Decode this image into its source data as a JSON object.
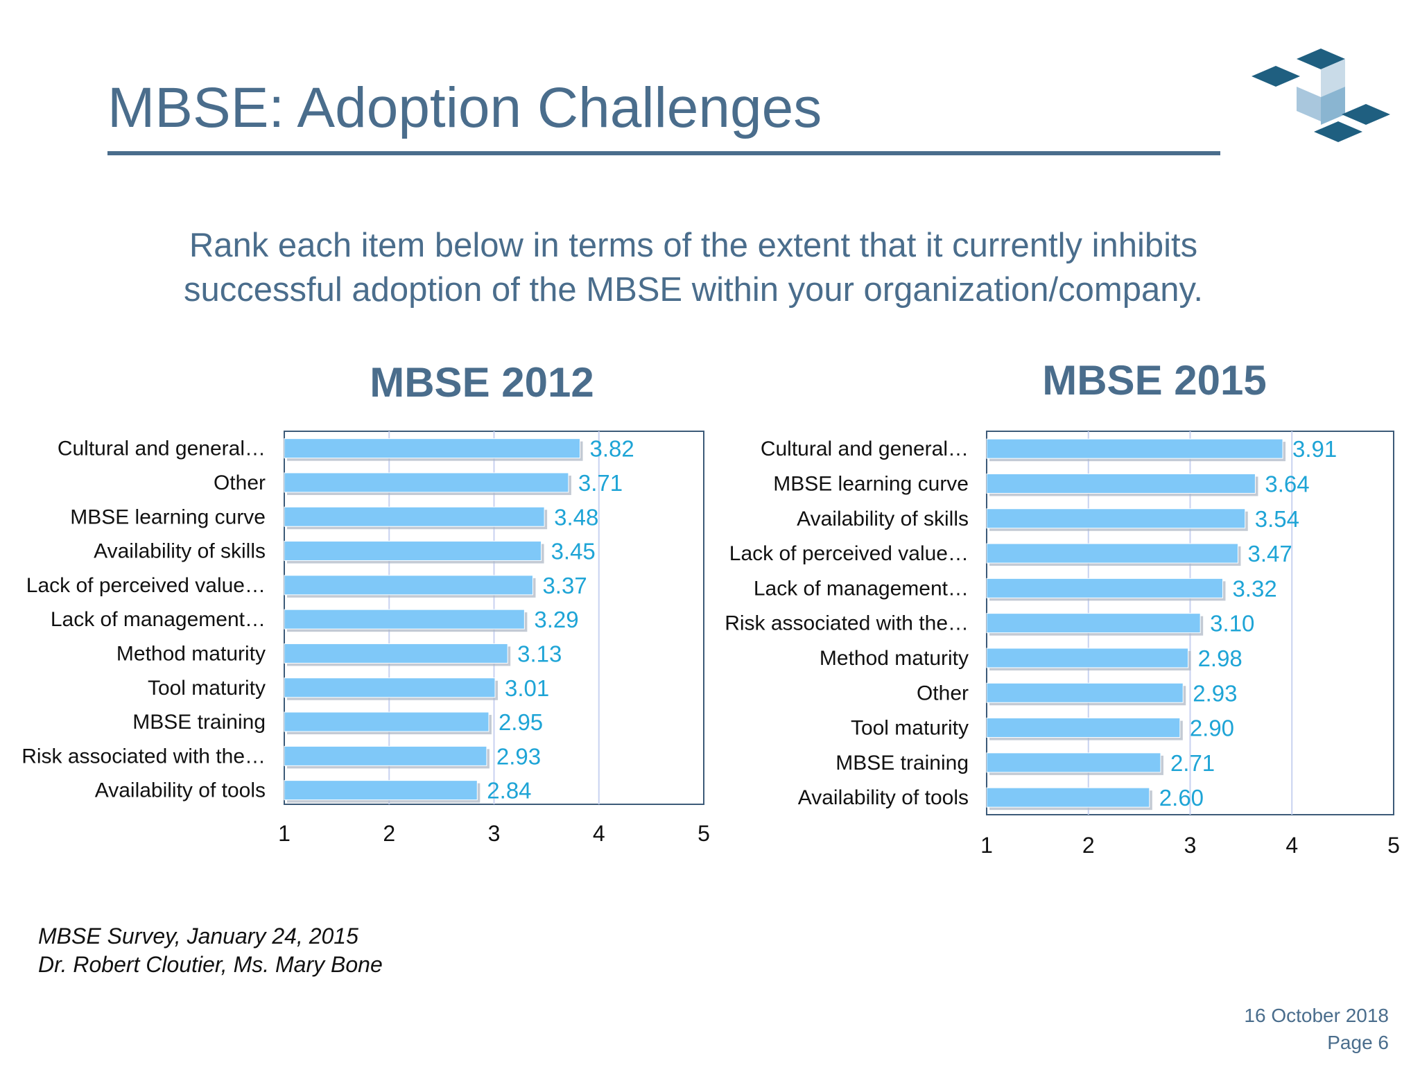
{
  "slide": {
    "title": "MBSE: Adoption Challenges",
    "subtitle_line1": "Rank each item below in terms of the extent that it currently inhibits",
    "subtitle_line2": "successful adoption of the MBSE within your organization/company.",
    "source_line1": "MBSE Survey, January  24, 2015",
    "source_line2": "Dr. Robert Cloutier, Ms. Mary Bone",
    "date": "16 October 2018",
    "page": "Page 6"
  },
  "colors": {
    "accent": "#4a6d8c",
    "bar": "#7fc8f8",
    "value_label": "#1ea4d6"
  },
  "icons": {
    "logo": "stacked-cubes-logo"
  },
  "chart_data": [
    {
      "type": "bar",
      "orientation": "horizontal",
      "title": "MBSE 2012",
      "categories": [
        "Cultural and general…",
        "Other",
        "MBSE learning curve",
        "Availability of skills",
        "Lack of perceived value…",
        "Lack of management…",
        "Method maturity",
        "Tool maturity",
        "MBSE training",
        "Risk associated with the…",
        "Availability of tools"
      ],
      "values": [
        3.82,
        3.71,
        3.48,
        3.45,
        3.37,
        3.29,
        3.13,
        3.01,
        2.95,
        2.93,
        2.84
      ],
      "value_labels": [
        "3.82",
        "3.71",
        "3.48",
        "3.45",
        "3.37",
        "3.29",
        "3.13",
        "3.01",
        "2.95",
        "2.93",
        "2.84"
      ],
      "xlim": [
        1,
        5
      ],
      "xticks": [
        "1",
        "2",
        "3",
        "4",
        "5"
      ],
      "grid": true,
      "legend": "none"
    },
    {
      "type": "bar",
      "orientation": "horizontal",
      "title": "MBSE 2015",
      "categories": [
        "Cultural and general…",
        "MBSE learning curve",
        "Availability of skills",
        "Lack of perceived value…",
        "Lack of management…",
        "Risk associated with the…",
        "Method maturity",
        "Other",
        "Tool maturity",
        "MBSE training",
        "Availability of tools"
      ],
      "values": [
        3.91,
        3.64,
        3.54,
        3.47,
        3.32,
        3.1,
        2.98,
        2.93,
        2.9,
        2.71,
        2.6
      ],
      "value_labels": [
        "3.91",
        "3.64",
        "3.54",
        "3.47",
        "3.32",
        "3.10",
        "2.98",
        "2.93",
        "2.90",
        "2.71",
        "2.60"
      ],
      "xlim": [
        1,
        5
      ],
      "xticks": [
        "1",
        "2",
        "3",
        "4",
        "5"
      ],
      "grid": true,
      "legend": "none"
    }
  ]
}
